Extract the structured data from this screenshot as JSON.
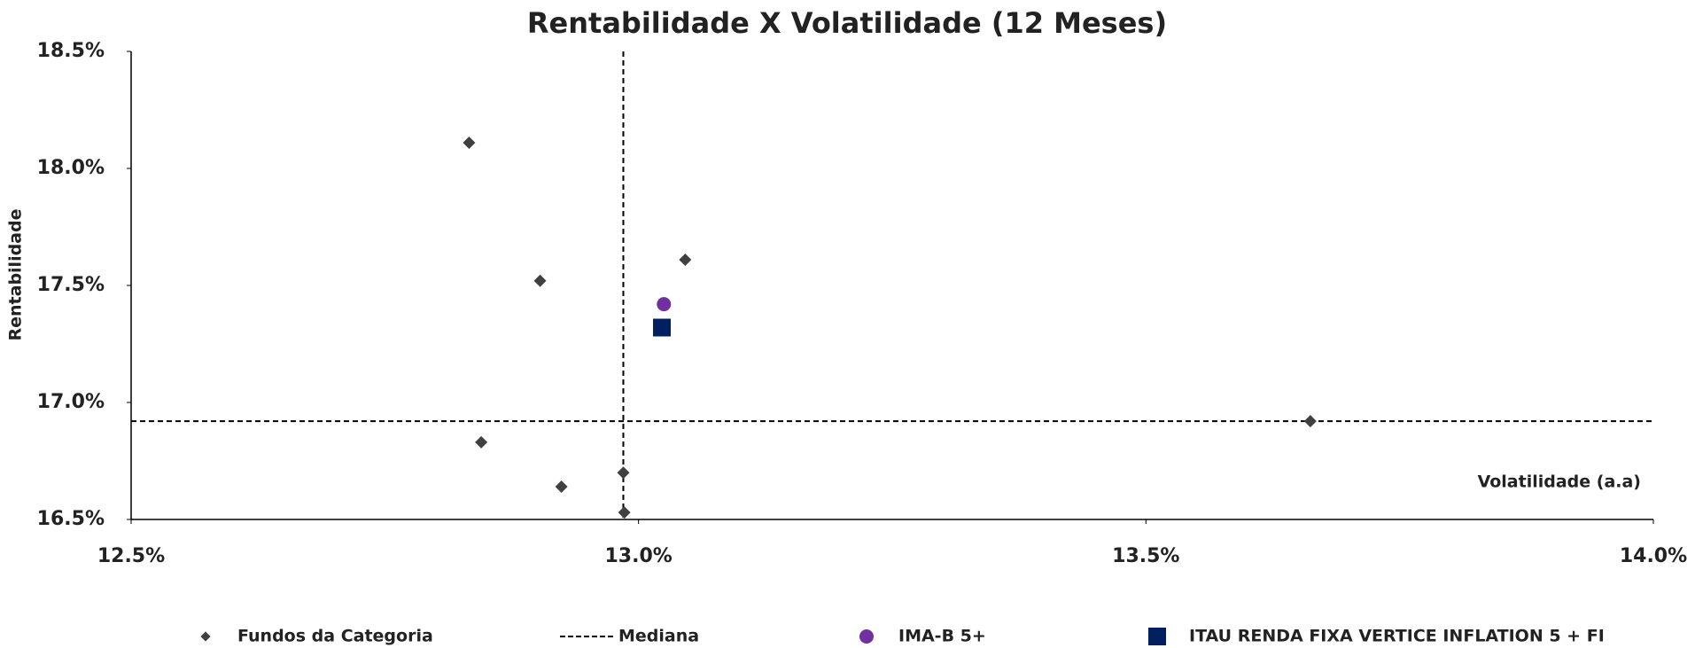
{
  "chart_data": {
    "type": "scatter",
    "title": "Rentabilidade X Volatilidade (12 Meses)",
    "x_label": "Volatilidade (a.a)",
    "y_label": "Rentabilidade",
    "xlim": [
      12.5,
      14.0
    ],
    "ylim": [
      16.5,
      18.5
    ],
    "xticks": [
      {
        "value": 12.5,
        "label": "12.5%"
      },
      {
        "value": 13.0,
        "label": "13.0%"
      },
      {
        "value": 13.5,
        "label": "13.5%"
      },
      {
        "value": 14.0,
        "label": "14.0%"
      }
    ],
    "yticks": [
      {
        "value": 16.5,
        "label": "16.5%"
      },
      {
        "value": 17.0,
        "label": "17.0%"
      },
      {
        "value": 17.5,
        "label": "17.5%"
      },
      {
        "value": 18.0,
        "label": "18.0%"
      },
      {
        "value": 18.5,
        "label": "18.5%"
      }
    ],
    "grid": false,
    "series": [
      {
        "name": "Fundos da Categoria",
        "color": "#404040",
        "marker": "diamond",
        "x": [
          12.833,
          12.903,
          13.046,
          12.845,
          12.924,
          12.985,
          12.986,
          13.662
        ],
        "values": [
          18.11,
          17.52,
          17.61,
          16.83,
          16.64,
          16.7,
          16.53,
          16.92
        ]
      },
      {
        "name": "IMA-B 5+",
        "color": "#7030a0",
        "marker": "circle",
        "x": [
          13.025
        ],
        "values": [
          17.42
        ]
      },
      {
        "name": "ITAU RENDA FIXA VERTICE INFLATION 5 + FI",
        "color": "#002060",
        "marker": "square",
        "x": [
          13.023
        ],
        "values": [
          17.32
        ]
      }
    ],
    "median": {
      "name": "Mediana",
      "color": "#000000",
      "x": 12.985,
      "y": 16.92
    }
  }
}
